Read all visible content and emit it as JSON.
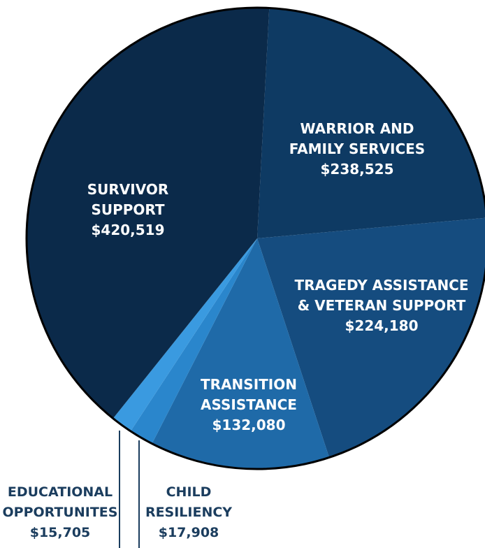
{
  "chart_data": {
    "type": "pie",
    "slices": [
      {
        "label_lines": [
          "SURVIVOR",
          "SUPPORT"
        ],
        "value": 420519,
        "value_label": "$420,519",
        "color": "#0b2a4a"
      },
      {
        "label_lines": [
          "WARRIOR AND",
          "FAMILY SERVICES"
        ],
        "value": 238525,
        "value_label": "$238,525",
        "color": "#0e3a63"
      },
      {
        "label_lines": [
          "TRAGEDY ASSISTANCE",
          "& VETERAN SUPPORT"
        ],
        "value": 224180,
        "value_label": "$224,180",
        "color": "#154c7f"
      },
      {
        "label_lines": [
          "TRANSITION",
          "ASSISTANCE"
        ],
        "value": 132080,
        "value_label": "$132,080",
        "color": "#1f6aa8"
      },
      {
        "label_lines": [
          "CHILD",
          "RESILIENCY"
        ],
        "value": 17908,
        "value_label": "$17,908",
        "color": "#2a86cc"
      },
      {
        "label_lines": [
          "EDUCATIONAL",
          "OPPORTUNITES"
        ],
        "value": 15705,
        "value_label": "$15,705",
        "color": "#3a9ae0"
      }
    ],
    "outline_color": "#000000",
    "external_label_color": "#1b3d5e"
  }
}
